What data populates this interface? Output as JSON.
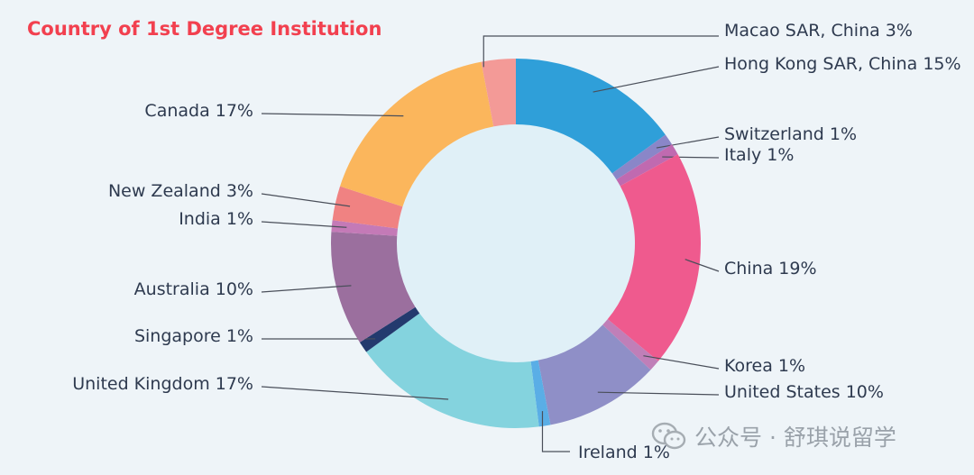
{
  "chart_data": {
    "type": "pie",
    "title": "Country of 1st Degree Institution",
    "slices": [
      {
        "label": "Hong Kong SAR, China 15%",
        "value": 15,
        "color": "#2f9fd9"
      },
      {
        "label": "Switzerland 1%",
        "value": 1,
        "color": "#8a86c8"
      },
      {
        "label": "Italy 1%",
        "value": 1,
        "color": "#c06ab0"
      },
      {
        "label": "China 19%",
        "value": 19,
        "color": "#ef5a8e"
      },
      {
        "label": "Korea 1%",
        "value": 1,
        "color": "#c07fb8"
      },
      {
        "label": "United States 10%",
        "value": 10,
        "color": "#8f8fc7"
      },
      {
        "label": "Ireland 1%",
        "value": 1,
        "color": "#5aaee6"
      },
      {
        "label": "United Kingdom 17%",
        "value": 17,
        "color": "#84d3de"
      },
      {
        "label": "Singapore 1%",
        "value": 1,
        "color": "#233a6e"
      },
      {
        "label": "Australia 10%",
        "value": 10,
        "color": "#9b6f9e"
      },
      {
        "label": "India 1%",
        "value": 1,
        "color": "#c47ab7"
      },
      {
        "label": "New Zealand 3%",
        "value": 3,
        "color": "#f08282"
      },
      {
        "label": "Canada 17%",
        "value": 17,
        "color": "#fbb65c"
      },
      {
        "label": "Macao SAR, China 3%",
        "value": 3,
        "color": "#f39a97"
      }
    ],
    "center_color": "#e0f0f7"
  },
  "watermark": {
    "text": "公众号 · 舒琪说留学",
    "icon": "wechat-icon"
  }
}
